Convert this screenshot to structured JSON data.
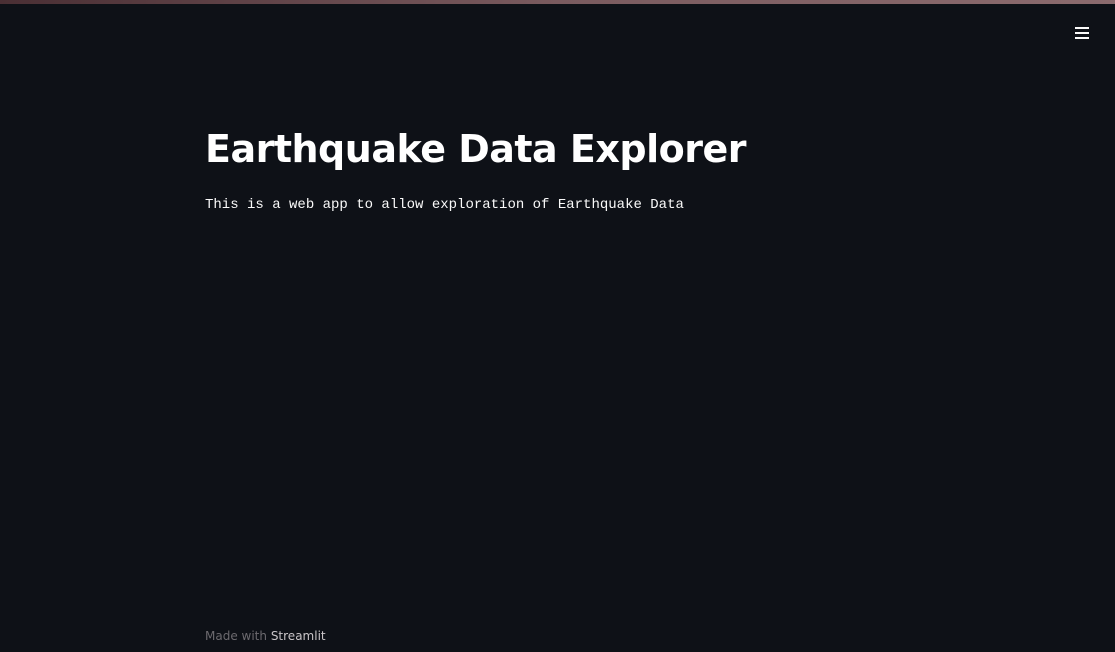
{
  "app": {
    "accent": "#7a5b5f",
    "background": "#0e1117"
  },
  "header": {
    "menu_icon": "hamburger-icon"
  },
  "main": {
    "title": "Earthquake Data Explorer",
    "description": "This is a web app to allow exploration of Earthquake Data"
  },
  "footer": {
    "made_with": "Made with",
    "link_text": "Streamlit"
  }
}
